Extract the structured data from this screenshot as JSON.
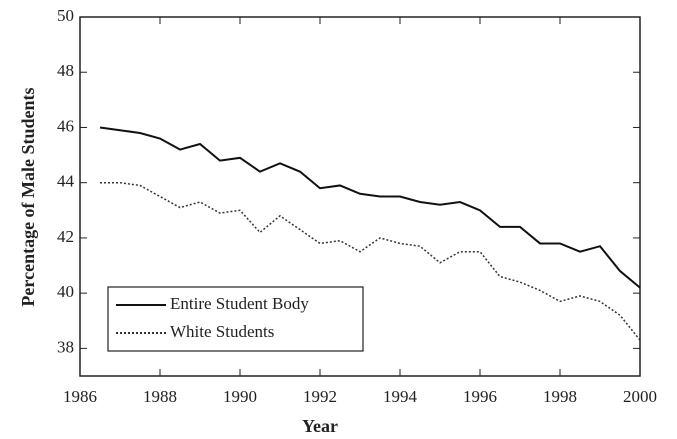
{
  "chart_data": {
    "type": "line",
    "xlabel": "Year",
    "ylabel": "Percentage of Male Students",
    "x": [
      1986.5,
      1987,
      1987.5,
      1988,
      1988.5,
      1989,
      1989.5,
      1990,
      1990.5,
      1991,
      1991.5,
      1992,
      1992.5,
      1993,
      1993.5,
      1994,
      1994.5,
      1995,
      1995.5,
      1996,
      1996.5,
      1997,
      1997.5,
      1998,
      1998.5,
      1999,
      1999.5,
      2000
    ],
    "series": [
      {
        "name": "Entire Student Body",
        "color": "#111111",
        "style": "solid",
        "values": [
          46.0,
          45.9,
          45.8,
          45.6,
          45.2,
          45.4,
          44.8,
          44.9,
          44.4,
          44.7,
          44.4,
          43.8,
          43.9,
          43.6,
          43.5,
          43.5,
          43.3,
          43.2,
          43.3,
          43.0,
          42.4,
          42.4,
          41.8,
          41.8,
          41.5,
          41.7,
          40.8,
          40.2
        ]
      },
      {
        "name": "White Students",
        "color": "#333333",
        "style": "dotted",
        "values": [
          44.0,
          44.0,
          43.9,
          43.5,
          43.1,
          43.3,
          42.9,
          43.0,
          42.2,
          42.8,
          42.3,
          41.8,
          41.9,
          41.5,
          42.0,
          41.8,
          41.7,
          41.1,
          41.5,
          41.5,
          40.6,
          40.4,
          40.1,
          39.7,
          39.9,
          39.7,
          39.2,
          38.3
        ]
      }
    ],
    "xlim": [
      1986,
      2000
    ],
    "xticks": [
      1986,
      1988,
      1990,
      1992,
      1994,
      1996,
      1998,
      2000
    ],
    "ylim": [
      37,
      50
    ],
    "yticks": [
      38,
      40,
      42,
      44,
      46,
      48,
      50
    ],
    "grid": false,
    "legend": "lower left"
  }
}
